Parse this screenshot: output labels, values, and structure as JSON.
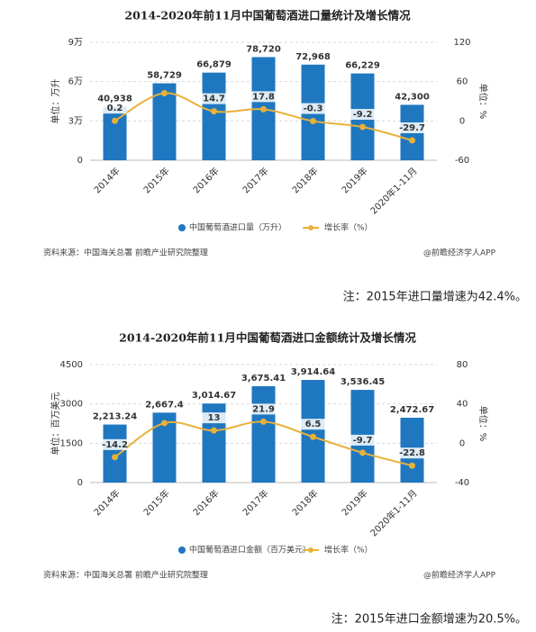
{
  "chart_data": [
    {
      "type": "bar-line",
      "title": "2014-2020年前11月中国葡萄酒进口量统计及增长情况",
      "categories": [
        "2014年",
        "2015年",
        "2016年",
        "2017年",
        "2018年",
        "2019年",
        "2020年1-11月"
      ],
      "series": [
        {
          "name": "中国葡萄酒进口量（万升）",
          "color": "#1f77c0",
          "values": [
            40938,
            58729,
            66879,
            78720,
            72968,
            66229,
            42300
          ],
          "value_labels": [
            "40,938",
            "58,729",
            "66,879",
            "78,720",
            "72,968",
            "66,229",
            "42,300"
          ]
        },
        {
          "name": "增长率（%）",
          "color": "#e8b13a",
          "axis": "y2",
          "values": [
            0.2,
            42.4,
            14.7,
            17.8,
            -0.3,
            -9.2,
            -29.7
          ],
          "value_labels": [
            "0.2",
            null,
            "14.7",
            "17.8",
            "-0.3",
            "-9.2",
            "-29.7"
          ]
        }
      ],
      "ylabel": "单位：万升",
      "y2label": "单位：%",
      "ylim": [
        0,
        90000
      ],
      "yticks": [
        0,
        {
          "value": 30000,
          "label": "3万"
        },
        {
          "value": 60000,
          "label": "6万"
        },
        {
          "value": 90000,
          "label": "9万"
        }
      ],
      "y2lim": [
        -60,
        120
      ],
      "y2ticks": [
        -60,
        0,
        60,
        120
      ],
      "grid": true,
      "source": "资料来源：中国海关总署 前瞻产业研究院整理",
      "credit": "@前瞻经济学人APP",
      "note": "注：2015年进口量增速为42.4%。"
    },
    {
      "type": "bar-line",
      "title": "2014-2020年前11月中国葡萄酒进口金额统计及增长情况",
      "categories": [
        "2014年",
        "2015年",
        "2016年",
        "2017年",
        "2018年",
        "2019年",
        "2020年1-11月"
      ],
      "series": [
        {
          "name": "中国葡萄酒进口金额（百万美元）",
          "color": "#1f77c0",
          "values": [
            2213.24,
            2667.4,
            3014.67,
            3675.41,
            3914.64,
            3536.45,
            2472.67
          ],
          "value_labels": [
            "2,213.24",
            "2,667.4",
            "3,014.67",
            "3,675.41",
            "3,914.64",
            "3,536.45",
            "2,472.67"
          ]
        },
        {
          "name": "增长率（%）",
          "color": "#e8b13a",
          "axis": "y2",
          "values": [
            -14.2,
            20.5,
            13,
            21.9,
            6.5,
            -9.7,
            -22.8
          ],
          "value_labels": [
            "-14.2",
            null,
            "13",
            "21.9",
            "6.5",
            "-9.7",
            "-22.8"
          ]
        }
      ],
      "ylabel": "单位：百万美元",
      "y2label": "单位：%",
      "ylim": [
        0,
        4500
      ],
      "yticks": [
        0,
        1500,
        3000,
        4500
      ],
      "y2lim": [
        -40,
        80
      ],
      "y2ticks": [
        -40,
        0,
        40,
        80
      ],
      "grid": true,
      "source": "资料来源：中国海关总署 前瞻产业研究院整理",
      "credit": "@前瞻经济学人APP",
      "note": "注：2015年进口金额增速为20.5%。"
    }
  ]
}
